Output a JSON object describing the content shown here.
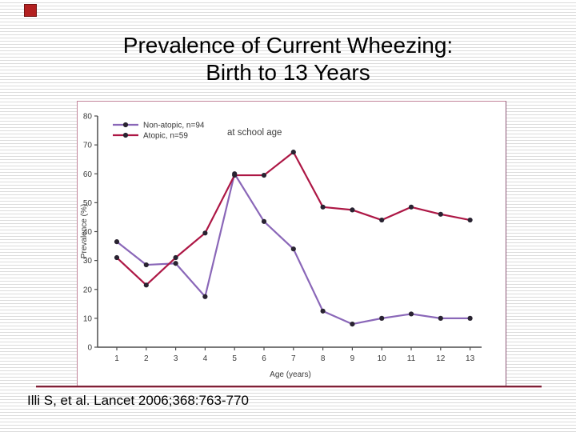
{
  "slide": {
    "title_line1": "Prevalence of Current Wheezing:",
    "title_line2": "Birth to 13 Years",
    "citation": "Illi S, et al. Lancet 2006;368:763-770",
    "accent_color": "#b32020"
  },
  "chart_data": {
    "type": "line",
    "title": "",
    "xlabel": "Age (years)",
    "ylabel": "Prevalence (%)",
    "annotation": "at school age",
    "x": [
      1,
      2,
      3,
      4,
      5,
      6,
      7,
      8,
      9,
      10,
      11,
      12,
      13
    ],
    "ylim": [
      0,
      80
    ],
    "ytick_step": 10,
    "grid": false,
    "legend_position": "top-left",
    "series": [
      {
        "name": "Non-atopic, n=94",
        "color": "#8a67b8",
        "values": [
          36.5,
          28.5,
          29,
          17.5,
          60,
          43.5,
          34,
          12.5,
          8,
          10,
          11.5,
          10,
          10
        ]
      },
      {
        "name": "Atopic, n=59",
        "color": "#ad1745",
        "values": [
          31,
          21.5,
          31,
          39.5,
          59.5,
          59.5,
          67.5,
          48.5,
          47.5,
          44,
          48.5,
          46,
          44
        ]
      }
    ],
    "marker_color": "#292331",
    "axis_color": "#4d4d4d",
    "tick_text_color": "#3a3a3a"
  }
}
